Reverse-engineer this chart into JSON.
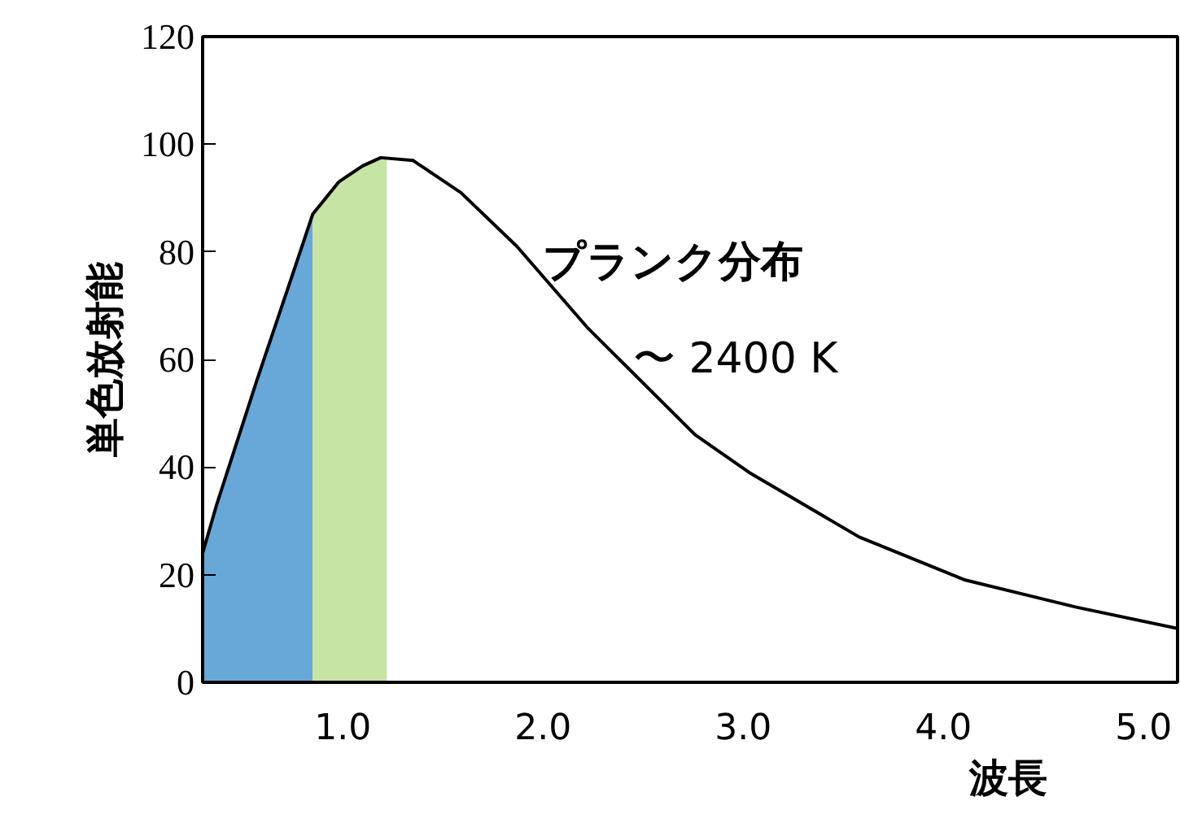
{
  "chart_data": {
    "type": "line",
    "xlabel": "波長",
    "ylabel": "単色放射能",
    "xlim": [
      0.3,
      5.17
    ],
    "ylim": [
      0,
      120
    ],
    "xticks": [
      {
        "value": 1,
        "label": "1.0"
      },
      {
        "value": 2,
        "label": "2.0"
      },
      {
        "value": 3,
        "label": "3.0"
      },
      {
        "value": 4,
        "label": "4.0"
      },
      {
        "value": 5,
        "label": "5.0"
      }
    ],
    "yticks": [
      0,
      20,
      40,
      60,
      80,
      100,
      120
    ],
    "grid": false,
    "annotations": [
      "プランク分布",
      "〜 2400 K"
    ],
    "series": [
      {
        "type": "area",
        "color": "#68a8d8",
        "x": [
          0.3,
          0.37,
          0.57,
          0.76,
          0.85
        ],
        "values": [
          24,
          33,
          56,
          77,
          87
        ]
      },
      {
        "type": "area",
        "color": "#c6e4a4",
        "x": [
          0.85,
          0.98,
          1.1,
          1.22
        ],
        "values": [
          87,
          93,
          96,
          97.5
        ]
      },
      {
        "color": "#000000",
        "x": [
          0.3,
          0.37,
          0.57,
          0.76,
          0.85,
          0.98,
          1.1,
          1.19,
          1.35,
          1.59,
          1.87,
          2.22,
          2.76,
          3.03,
          3.58,
          4.11,
          4.66,
          5.17
        ],
        "values": [
          24,
          33,
          56,
          77,
          87,
          93,
          96,
          97.5,
          97,
          91,
          81,
          66,
          46,
          39,
          27,
          19,
          14,
          10
        ]
      }
    ]
  }
}
